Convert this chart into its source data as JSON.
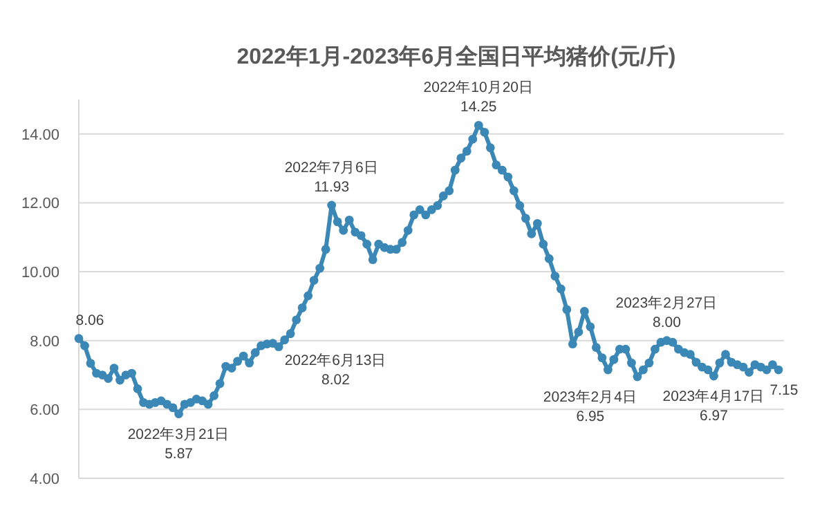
{
  "chart_data": {
    "type": "line",
    "title": "2022年1月-2023年6月全国日平均猪价(元/斤)",
    "categories": [
      null,
      null,
      null,
      null,
      null,
      null,
      null,
      null,
      null,
      null,
      null,
      null,
      null,
      null,
      null,
      null,
      null,
      null,
      null,
      null,
      null,
      null,
      null,
      null,
      null,
      null,
      null,
      null,
      null,
      null,
      null,
      null,
      null,
      null,
      null,
      null,
      null,
      null,
      null,
      null,
      null,
      null,
      null,
      null,
      null,
      null,
      null,
      null,
      null,
      null,
      null,
      null,
      null,
      null,
      null,
      null,
      null,
      null,
      null,
      null,
      null,
      null,
      null,
      null,
      null,
      null,
      null,
      null,
      null,
      null,
      null,
      null,
      null,
      null,
      null,
      null,
      null,
      null,
      null,
      null,
      null,
      null,
      null,
      null,
      null,
      null,
      null,
      null,
      null,
      null,
      null,
      null,
      null,
      null,
      null,
      null,
      null,
      null,
      null,
      null,
      null,
      null,
      null,
      null,
      null,
      null,
      null,
      null,
      null,
      null,
      null,
      null,
      null,
      null,
      null,
      null,
      null,
      null,
      null,
      null
    ],
    "values": [
      8.06,
      7.85,
      7.34,
      7.05,
      7.0,
      6.9,
      7.2,
      6.85,
      7.0,
      7.05,
      6.6,
      6.2,
      6.15,
      6.2,
      6.25,
      6.15,
      6.05,
      5.87,
      6.15,
      6.2,
      6.3,
      6.25,
      6.15,
      6.4,
      6.75,
      7.25,
      7.2,
      7.4,
      7.55,
      7.35,
      7.65,
      7.85,
      7.9,
      7.92,
      7.82,
      8.02,
      8.2,
      8.6,
      8.95,
      9.3,
      9.75,
      10.1,
      10.65,
      11.93,
      11.45,
      11.2,
      11.5,
      11.15,
      11.05,
      10.8,
      10.35,
      10.8,
      10.7,
      10.65,
      10.65,
      10.85,
      11.2,
      11.65,
      11.8,
      11.65,
      11.8,
      11.92,
      12.2,
      12.35,
      12.95,
      13.3,
      13.5,
      13.85,
      14.25,
      14.05,
      13.6,
      13.1,
      12.95,
      12.75,
      12.35,
      11.92,
      11.55,
      11.1,
      11.4,
      10.8,
      10.38,
      9.87,
      9.5,
      8.9,
      7.9,
      8.25,
      8.85,
      8.4,
      7.8,
      7.5,
      7.15,
      7.45,
      7.75,
      7.75,
      7.35,
      6.95,
      7.15,
      7.35,
      7.75,
      7.95,
      8.0,
      7.95,
      7.75,
      7.65,
      7.6,
      7.37,
      7.23,
      7.15,
      6.97,
      7.35,
      7.6,
      7.37,
      7.3,
      7.23,
      7.08,
      7.3,
      7.23,
      7.15,
      7.3,
      7.15
    ],
    "value_labels": [
      "8.06",
      null,
      null,
      null,
      null,
      null,
      null,
      null,
      null,
      null,
      null,
      null,
      null,
      null,
      null,
      null,
      null,
      "2022年3月21日\n5.87",
      null,
      null,
      null,
      null,
      null,
      null,
      null,
      null,
      null,
      null,
      null,
      null,
      null,
      null,
      null,
      null,
      null,
      "2022年6月13日\n8.02",
      null,
      null,
      null,
      null,
      null,
      null,
      null,
      "2022年7月6日\n11.93",
      null,
      null,
      null,
      null,
      null,
      null,
      null,
      null,
      null,
      null,
      null,
      null,
      null,
      null,
      null,
      null,
      null,
      null,
      null,
      null,
      null,
      null,
      null,
      null,
      "2022年10月20日\n14.25",
      null,
      null,
      null,
      null,
      null,
      null,
      null,
      null,
      null,
      null,
      null,
      null,
      null,
      null,
      null,
      null,
      null,
      null,
      null,
      null,
      null,
      null,
      null,
      null,
      null,
      null,
      "2023年2月4日\n6.95",
      null,
      null,
      null,
      null,
      "2023年2月27日\n8.00",
      null,
      null,
      null,
      null,
      null,
      null,
      null,
      "2023年4月17日\n6.97",
      null,
      null,
      null,
      null,
      null,
      null,
      null,
      null,
      null,
      null,
      "7.15"
    ],
    "color": "#3b87b6",
    "marker": "circle",
    "ylim": [
      4,
      15
    ],
    "yticks": [
      {
        "value": 4,
        "label": "4.00"
      },
      {
        "value": 6,
        "label": "6.00"
      },
      {
        "value": 8,
        "label": "8.00"
      },
      {
        "value": 10,
        "label": "10.00"
      },
      {
        "value": 12,
        "label": "12.00"
      },
      {
        "value": 14,
        "label": "14.00"
      }
    ],
    "grid": "y",
    "tick_labels": "y"
  }
}
